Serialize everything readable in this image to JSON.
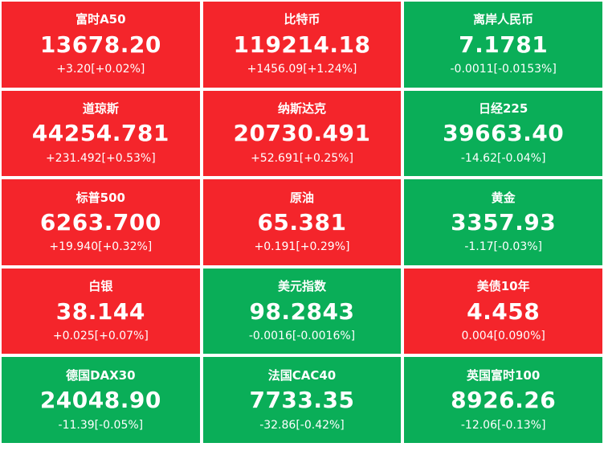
{
  "colors": {
    "up": "#f4252b",
    "down": "#0aae58",
    "text": "#ffffff"
  },
  "tiles": [
    {
      "label": "富时A50",
      "value": "13678.20",
      "change": "+3.20[+0.02%]",
      "direction": "up"
    },
    {
      "label": "比特币",
      "value": "119214.18",
      "change": "+1456.09[+1.24%]",
      "direction": "up"
    },
    {
      "label": "离岸人民币",
      "value": "7.1781",
      "change": "-0.0011[-0.0153%]",
      "direction": "down"
    },
    {
      "label": "道琼斯",
      "value": "44254.781",
      "change": "+231.492[+0.53%]",
      "direction": "up"
    },
    {
      "label": "纳斯达克",
      "value": "20730.491",
      "change": "+52.691[+0.25%]",
      "direction": "up"
    },
    {
      "label": "日经225",
      "value": "39663.40",
      "change": "-14.62[-0.04%]",
      "direction": "down"
    },
    {
      "label": "标普500",
      "value": "6263.700",
      "change": "+19.940[+0.32%]",
      "direction": "up"
    },
    {
      "label": "原油",
      "value": "65.381",
      "change": "+0.191[+0.29%]",
      "direction": "up"
    },
    {
      "label": "黄金",
      "value": "3357.93",
      "change": "-1.17[-0.03%]",
      "direction": "down"
    },
    {
      "label": "白银",
      "value": "38.144",
      "change": "+0.025[+0.07%]",
      "direction": "up"
    },
    {
      "label": "美元指数",
      "value": "98.2843",
      "change": "-0.0016[-0.0016%]",
      "direction": "down"
    },
    {
      "label": "美债10年",
      "value": "4.458",
      "change": "0.004[0.090%]",
      "direction": "up"
    },
    {
      "label": "德国DAX30",
      "value": "24048.90",
      "change": "-11.39[-0.05%]",
      "direction": "down"
    },
    {
      "label": "法国CAC40",
      "value": "7733.35",
      "change": "-32.86[-0.42%]",
      "direction": "down"
    },
    {
      "label": "英国富时100",
      "value": "8926.26",
      "change": "-12.06[-0.13%]",
      "direction": "down"
    }
  ]
}
